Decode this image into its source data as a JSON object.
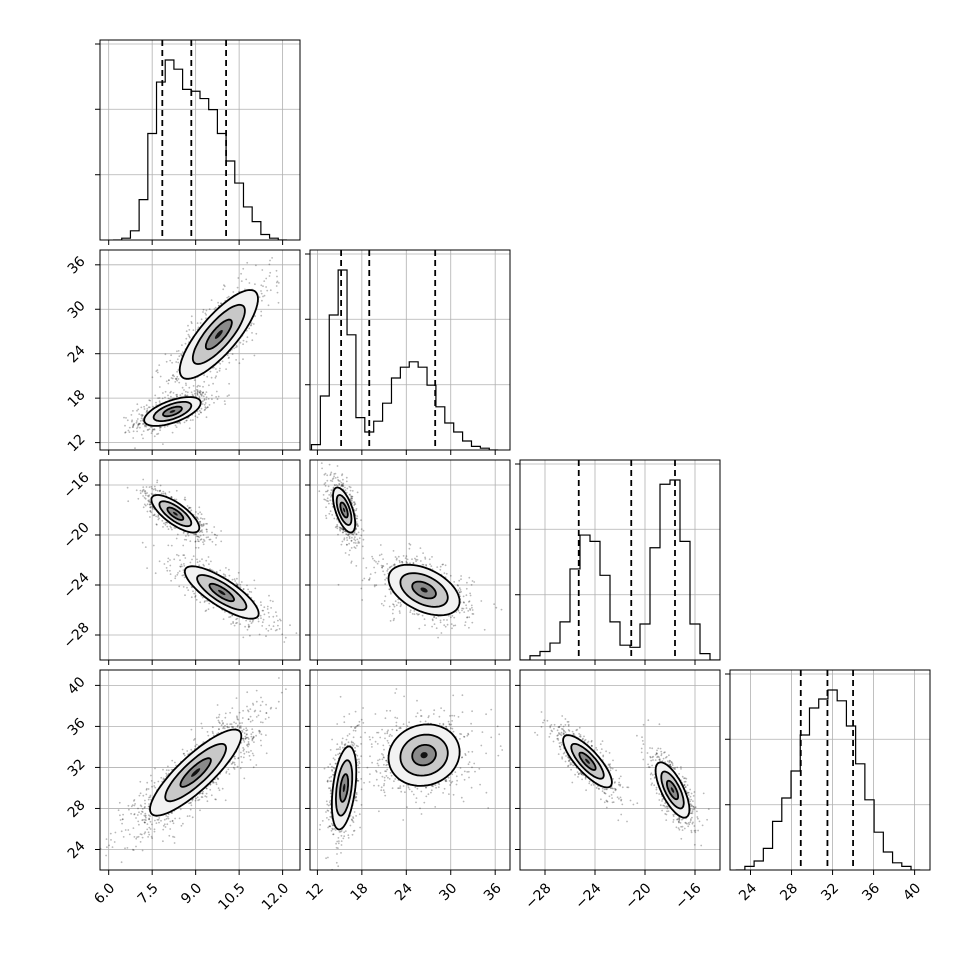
{
  "chart_data": {
    "type": "corner",
    "parameters": [
      {
        "id": "p0",
        "ticks": [
          6.0,
          7.5,
          9.0,
          10.5,
          12.0
        ],
        "tick_labels": [
          "6.0",
          "7.5",
          "9.0",
          "10.5",
          "12.0"
        ],
        "range": [
          5.7,
          12.6
        ],
        "quantiles": [
          7.85,
          8.85,
          10.05
        ]
      },
      {
        "id": "p1",
        "ticks": [
          12,
          18,
          24,
          30,
          36
        ],
        "tick_labels": [
          "12",
          "18",
          "24",
          "30",
          "36"
        ],
        "range": [
          11.0,
          38.0
        ],
        "quantiles": [
          15.2,
          19.0,
          27.9
        ]
      },
      {
        "id": "p2",
        "ticks": [
          -28,
          -24,
          -20,
          -16
        ],
        "tick_labels": [
          "−28",
          "−24",
          "−20",
          "−16"
        ],
        "range": [
          -30.0,
          -14.0
        ],
        "quantiles": [
          -25.3,
          -21.1,
          -17.6
        ]
      },
      {
        "id": "p3",
        "ticks": [
          24,
          28,
          32,
          36,
          40
        ],
        "tick_labels": [
          "24",
          "28",
          "32",
          "36",
          "40"
        ],
        "range": [
          22.0,
          41.5
        ],
        "quantiles": [
          28.9,
          31.5,
          34.0
        ]
      }
    ],
    "histograms": [
      {
        "param": 0,
        "bin_centers": [
          6.3,
          6.6,
          6.9,
          7.2,
          7.5,
          7.8,
          8.1,
          8.4,
          8.7,
          9.0,
          9.3,
          9.6,
          9.9,
          10.2,
          10.5,
          10.8,
          11.1,
          11.4,
          11.7,
          12.0
        ],
        "counts": [
          0,
          1,
          5,
          22,
          58,
          86,
          98,
          93,
          82,
          81,
          77,
          71,
          58,
          43,
          31,
          18,
          10,
          3,
          1,
          0
        ]
      },
      {
        "param": 1,
        "bin_centers": [
          11.8,
          13.0,
          14.2,
          15.4,
          16.6,
          17.8,
          19.0,
          20.2,
          21.4,
          22.6,
          23.8,
          25.0,
          26.2,
          27.4,
          28.6,
          29.8,
          31.0,
          32.2,
          33.4,
          34.6,
          35.8
        ],
        "counts": [
          3,
          30,
          75,
          100,
          64,
          18,
          10,
          16,
          26,
          40,
          46,
          49,
          46,
          36,
          24,
          15,
          10,
          5,
          2,
          1,
          0
        ]
      },
      {
        "param": 2,
        "bin_centers": [
          -29.6,
          -28.8,
          -28.0,
          -27.2,
          -26.4,
          -25.6,
          -24.8,
          -24.0,
          -23.2,
          -22.4,
          -21.6,
          -20.8,
          -20.0,
          -19.2,
          -18.4,
          -17.6,
          -16.8,
          -16.0,
          -15.2,
          -14.4
        ],
        "counts": [
          0,
          2,
          4,
          8,
          18,
          43,
          59,
          56,
          40,
          18,
          7,
          6,
          17,
          53,
          83,
          85,
          56,
          17,
          3,
          0
        ]
      },
      {
        "param": 3,
        "bin_centers": [
          23.0,
          23.9,
          24.8,
          25.7,
          26.6,
          27.5,
          28.4,
          29.3,
          30.2,
          31.1,
          32.0,
          32.9,
          33.8,
          34.7,
          35.6,
          36.5,
          37.4,
          38.3,
          39.2,
          40.1
        ],
        "counts": [
          0,
          2,
          5,
          12,
          27,
          40,
          55,
          75,
          90,
          95,
          100,
          94,
          80,
          59,
          39,
          21,
          10,
          4,
          2,
          0
        ]
      }
    ],
    "pairs": [
      {
        "x": 0,
        "y": 1,
        "modes": [
          {
            "mean": [
              8.2,
              16.2
            ],
            "sd": [
              0.65,
              1.3
            ],
            "r": 0.6,
            "w": 0.48
          },
          {
            "mean": [
              9.8,
              26.6
            ],
            "sd": [
              0.9,
              4.0
            ],
            "r": 0.8,
            "w": 0.52
          }
        ]
      },
      {
        "x": 0,
        "y": 2,
        "modes": [
          {
            "mean": [
              8.3,
              -18.3
            ],
            "sd": [
              0.55,
              1.0
            ],
            "r": -0.75,
            "w": 0.48
          },
          {
            "mean": [
              9.9,
              -24.6
            ],
            "sd": [
              0.85,
              1.4
            ],
            "r": -0.8,
            "w": 0.52
          }
        ]
      },
      {
        "x": 1,
        "y": 2,
        "modes": [
          {
            "mean": [
              15.6,
              -18.0
            ],
            "sd": [
              1.0,
              1.2
            ],
            "r": -0.6,
            "w": 0.5
          },
          {
            "mean": [
              26.4,
              -24.4
            ],
            "sd": [
              3.2,
              1.35
            ],
            "r": -0.45,
            "w": 0.5
          }
        ]
      },
      {
        "x": 0,
        "y": 3,
        "modes": [
          {
            "mean": [
              9.0,
              31.5
            ],
            "sd": [
              1.05,
              2.8
            ],
            "r": 0.85,
            "w": 1.0
          }
        ]
      },
      {
        "x": 1,
        "y": 3,
        "modes": [
          {
            "mean": [
              15.6,
              30.0
            ],
            "sd": [
              1.1,
              2.7
            ],
            "r": 0.4,
            "w": 0.5
          },
          {
            "mean": [
              26.4,
              33.2
            ],
            "sd": [
              3.2,
              2.0
            ],
            "r": 0.1,
            "w": 0.5
          }
        ]
      },
      {
        "x": 2,
        "y": 3,
        "modes": [
          {
            "mean": [
              -24.6,
              32.6
            ],
            "sd": [
              1.3,
              1.7
            ],
            "r": -0.8,
            "w": 0.5
          },
          {
            "mean": [
              -17.8,
              29.8
            ],
            "sd": [
              0.9,
              1.8
            ],
            "r": -0.7,
            "w": 0.5
          }
        ]
      }
    ],
    "grid": true,
    "quantile_lines": "dashed",
    "contour_levels": [
      0.5,
      1.0,
      1.5
    ]
  }
}
